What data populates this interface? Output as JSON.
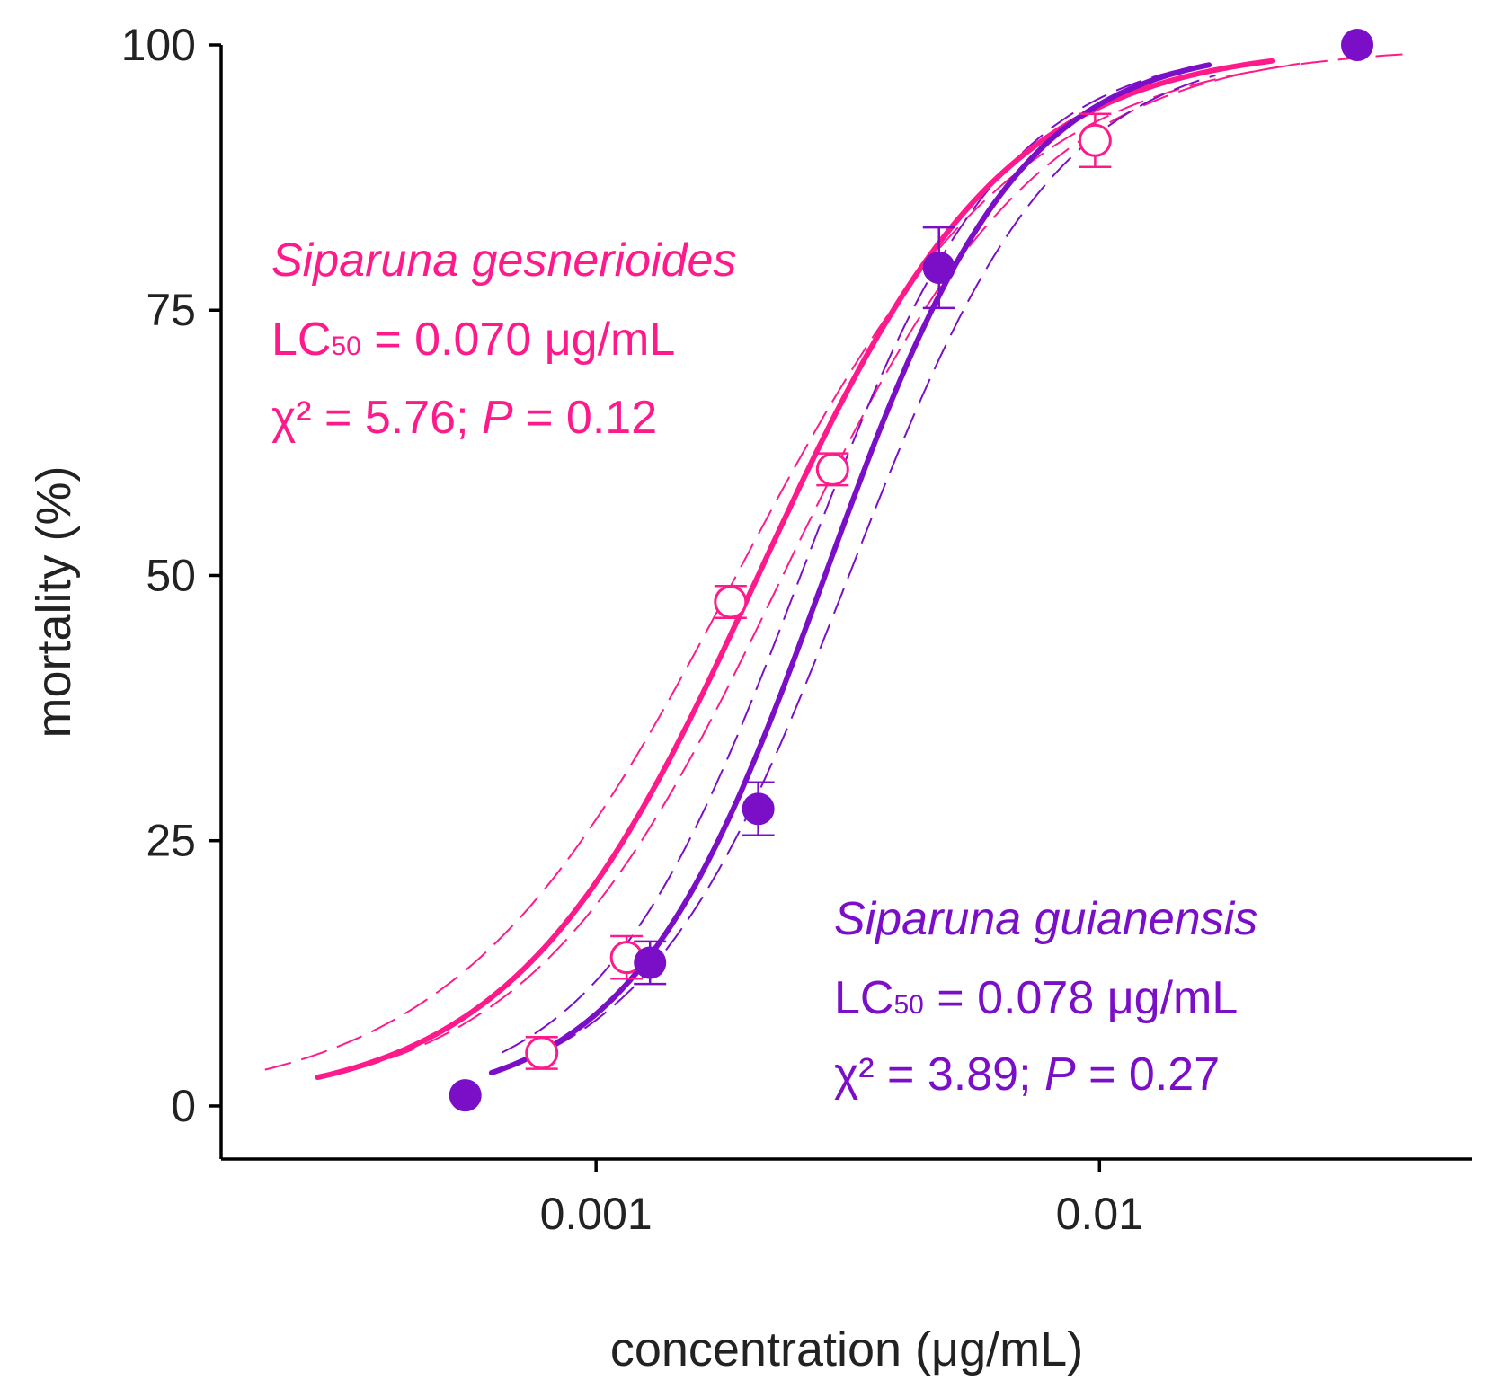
{
  "chart_data": {
    "type": "scatter",
    "xlabel": "concentration (μg/mL)",
    "ylabel": "mortality (%)",
    "xscale": "log",
    "xlim": [
      0.00018,
      0.055
    ],
    "ylim": [
      -5,
      100
    ],
    "x_ticks": [
      {
        "value": 0.001,
        "label": "0.001"
      },
      {
        "value": 0.01,
        "label": "0.01"
      }
    ],
    "y_ticks": [
      {
        "value": 0,
        "label": "0"
      },
      {
        "value": 25,
        "label": "25"
      },
      {
        "value": 50,
        "label": "50"
      },
      {
        "value": 75,
        "label": "75"
      },
      {
        "value": 100,
        "label": "100"
      }
    ],
    "grid": false,
    "series": [
      {
        "name": "Siparuna gesnerioides",
        "color": "#ff1a8c",
        "marker": "open-circle",
        "lc50_text": "0.070 μg/mL",
        "chi2_text": "5.76",
        "p_text": "0.12",
        "points": [
          {
            "x": 0.00078,
            "y": 5,
            "err": 1.5
          },
          {
            "x": 0.00115,
            "y": 14,
            "err": 2.0
          },
          {
            "x": 0.00185,
            "y": 47.5,
            "err": 1.5
          },
          {
            "x": 0.00295,
            "y": 60,
            "err": 1.5
          },
          {
            "x": 0.0098,
            "y": 91,
            "err": 2.5
          }
        ],
        "fit": {
          "ec50": 0.0021,
          "slope": 1.78,
          "x_range": [
            0.00028,
            0.022
          ]
        },
        "ci_bands": [
          {
            "ec50": 0.0019,
            "slope": 1.55,
            "x_range": [
              0.00022,
              0.042
            ]
          },
          {
            "ec50": 0.00235,
            "slope": 1.7,
            "x_range": [
              0.00033,
              0.025
            ]
          }
        ]
      },
      {
        "name": "Siparuna guianensis",
        "color": "#7b0fc8",
        "marker": "filled-circle",
        "lc50_text": "0.078 μg/mL",
        "chi2_text": "3.89",
        "p_text": "0.27",
        "points": [
          {
            "x": 0.00055,
            "y": 1,
            "err": 0
          },
          {
            "x": 0.00128,
            "y": 13.5,
            "err": 2.0
          },
          {
            "x": 0.0021,
            "y": 28,
            "err": 2.5
          },
          {
            "x": 0.0048,
            "y": 79,
            "err": 3.8
          },
          {
            "x": 0.0325,
            "y": 100,
            "err": 0
          }
        ],
        "fit": {
          "ec50": 0.00285,
          "slope": 2.25,
          "x_range": [
            0.00062,
            0.0165
          ]
        },
        "ci_bands": [
          {
            "ec50": 0.00255,
            "slope": 2.15,
            "x_range": [
              0.00065,
              0.016
            ]
          },
          {
            "ec50": 0.00318,
            "slope": 2.1,
            "x_range": [
              0.0007,
              0.017
            ]
          }
        ]
      }
    ],
    "annotations": [
      {
        "series": 0,
        "species": "Siparuna gesnerioides",
        "lc_prefix": "LC",
        "lc_sub": "50",
        "lc_rest": " = 0.070 μg/mL",
        "chi_prefix": "χ² = 5.76; ",
        "p_label": "P",
        "p_rest": " = 0.12",
        "position": "upper-left"
      },
      {
        "series": 1,
        "species": "Siparuna guianensis",
        "lc_prefix": "LC",
        "lc_sub": "50",
        "lc_rest": " = 0.078 μg/mL",
        "chi_prefix": "χ² = 3.89; ",
        "p_label": "P",
        "p_rest": " = 0.27",
        "position": "lower-right"
      }
    ]
  }
}
